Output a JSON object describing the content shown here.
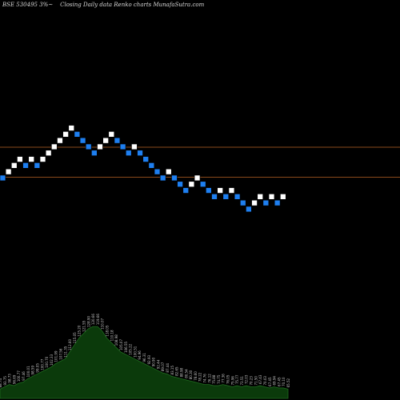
{
  "header": {
    "left": "BSE 530495 3%~",
    "right": "Closing Daily data  Renko  charts MunafaSutra.com"
  },
  "chart_data": {
    "type": "renko",
    "title": "BSE 530495 3%~ Closing Daily data Renko charts MunafaSutra.com",
    "bricks": [
      {
        "level": 0,
        "dir": "down"
      },
      {
        "level": 1,
        "dir": "up"
      },
      {
        "level": 2,
        "dir": "up"
      },
      {
        "level": 3,
        "dir": "up"
      },
      {
        "level": 2,
        "dir": "down"
      },
      {
        "level": 3,
        "dir": "up"
      },
      {
        "level": 2,
        "dir": "down"
      },
      {
        "level": 3,
        "dir": "up"
      },
      {
        "level": 4,
        "dir": "up"
      },
      {
        "level": 5,
        "dir": "up"
      },
      {
        "level": 6,
        "dir": "up"
      },
      {
        "level": 7,
        "dir": "up"
      },
      {
        "level": 8,
        "dir": "up"
      },
      {
        "level": 7,
        "dir": "down"
      },
      {
        "level": 6,
        "dir": "down"
      },
      {
        "level": 5,
        "dir": "down"
      },
      {
        "level": 4,
        "dir": "down"
      },
      {
        "level": 5,
        "dir": "up"
      },
      {
        "level": 6,
        "dir": "up"
      },
      {
        "level": 7,
        "dir": "up"
      },
      {
        "level": 6,
        "dir": "down"
      },
      {
        "level": 5,
        "dir": "down"
      },
      {
        "level": 4,
        "dir": "down"
      },
      {
        "level": 5,
        "dir": "up"
      },
      {
        "level": 4,
        "dir": "down"
      },
      {
        "level": 3,
        "dir": "down"
      },
      {
        "level": 2,
        "dir": "down"
      },
      {
        "level": 1,
        "dir": "down"
      },
      {
        "level": 0,
        "dir": "down"
      },
      {
        "level": 1,
        "dir": "up"
      },
      {
        "level": 0,
        "dir": "down"
      },
      {
        "level": -1,
        "dir": "down"
      },
      {
        "level": -2,
        "dir": "down"
      },
      {
        "level": -1,
        "dir": "up"
      },
      {
        "level": 0,
        "dir": "up"
      },
      {
        "level": -1,
        "dir": "down"
      },
      {
        "level": -2,
        "dir": "down"
      },
      {
        "level": -3,
        "dir": "down"
      },
      {
        "level": -2,
        "dir": "up"
      },
      {
        "level": -3,
        "dir": "down"
      },
      {
        "level": -2,
        "dir": "up"
      },
      {
        "level": -3,
        "dir": "down"
      },
      {
        "level": -4,
        "dir": "down"
      },
      {
        "level": -5,
        "dir": "down"
      },
      {
        "level": -4,
        "dir": "up"
      },
      {
        "level": -3,
        "dir": "up"
      },
      {
        "level": -4,
        "dir": "down"
      },
      {
        "level": -3,
        "dir": "up"
      },
      {
        "level": -4,
        "dir": "down"
      },
      {
        "level": -3,
        "dir": "up"
      }
    ],
    "reference_levels": [
      5,
      0
    ],
    "volume": {
      "values": [
        8,
        10,
        12,
        11,
        13,
        14,
        17,
        19,
        21,
        23,
        25,
        27,
        30,
        32,
        34,
        40,
        46,
        52,
        56,
        60,
        62,
        62,
        58,
        52,
        48,
        44,
        40,
        38,
        36,
        34,
        32,
        30,
        28,
        26,
        24,
        22,
        21,
        19,
        18,
        17,
        16,
        15,
        14,
        13,
        12,
        12,
        11,
        11,
        12,
        11,
        10,
        11,
        10,
        11,
        10,
        10,
        11,
        10,
        9,
        10,
        9,
        9,
        8
      ],
      "labels": [
        "88.74",
        "93.75",
        "98.73",
        "96.69",
        "100.77",
        "97.46",
        "100.01",
        "98.59",
        "99.05",
        "100.77",
        "100.70",
        "102.33",
        "101.99",
        "107.56",
        "111.35",
        "112.60",
        "115.05",
        "125.20",
        "121.55",
        "128.90",
        "120.66",
        "119.66",
        "110.07",
        "118.05",
        "110.18",
        "108.98",
        "105.07",
        "106.55",
        "105.22",
        "100.51",
        "94.96",
        "96.31",
        "92.93",
        "90.90",
        "92.44",
        "89.07",
        "87.44",
        "83.15",
        "82.65",
        "88.98",
        "80.54",
        "80.30",
        "78.60",
        "78.22",
        "74.76",
        "76.12",
        "75.88",
        "74.75",
        "77.36",
        "76.05",
        "75.96",
        "75.77",
        "73.51",
        "72.03",
        "70.23",
        "71.50",
        "67.43",
        "70.03",
        "67.45",
        "69.94",
        "67.45",
        "70.10",
        "65.52"
      ]
    }
  }
}
